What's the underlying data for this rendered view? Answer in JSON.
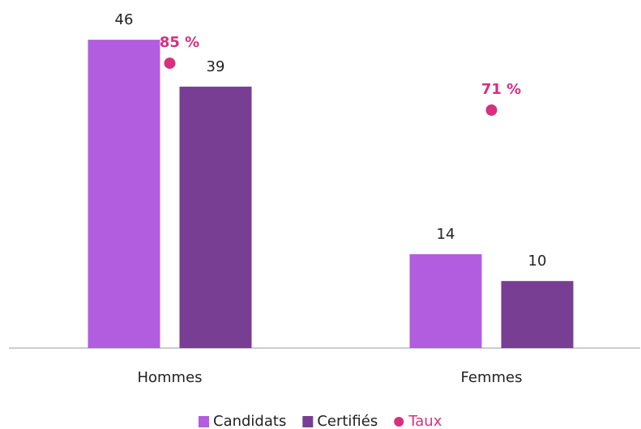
{
  "chart_data": {
    "type": "bar",
    "categories": [
      "Hommes",
      "Femmes"
    ],
    "series": [
      {
        "name": "Candidats",
        "color": "#b25de0",
        "values": [
          46,
          14
        ]
      },
      {
        "name": "Certifiés",
        "color": "#773e94",
        "values": [
          39,
          10
        ]
      },
      {
        "name": "Taux",
        "color": "#d6307f",
        "type": "scatter",
        "axis": "y2",
        "values": [
          85,
          71
        ],
        "value_labels": [
          "85 %",
          "71 %"
        ]
      }
    ],
    "ylim": [
      0,
      50
    ],
    "y2lim": [
      0,
      100
    ],
    "grid": false,
    "legend": "bottom"
  }
}
